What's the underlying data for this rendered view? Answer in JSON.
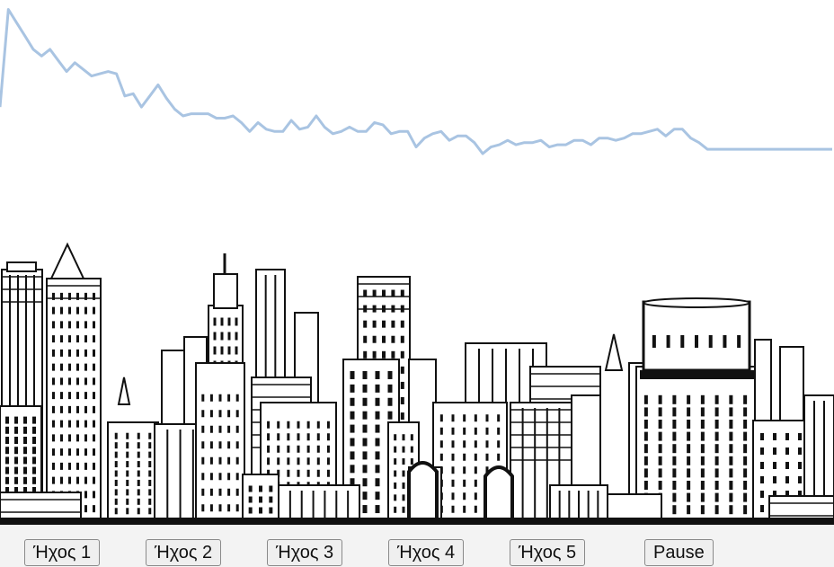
{
  "visualizer": {
    "line_color": "#a9c4e2",
    "levels": [
      0.55,
      0.99,
      0.93,
      0.87,
      0.81,
      0.78,
      0.81,
      0.76,
      0.71,
      0.75,
      0.72,
      0.69,
      0.7,
      0.71,
      0.7,
      0.6,
      0.61,
      0.55,
      0.6,
      0.65,
      0.59,
      0.54,
      0.51,
      0.52,
      0.52,
      0.52,
      0.5,
      0.5,
      0.51,
      0.48,
      0.44,
      0.48,
      0.45,
      0.44,
      0.44,
      0.49,
      0.45,
      0.46,
      0.51,
      0.46,
      0.43,
      0.44,
      0.46,
      0.44,
      0.44,
      0.48,
      0.47,
      0.43,
      0.44,
      0.44,
      0.37,
      0.41,
      0.43,
      0.44,
      0.4,
      0.42,
      0.42,
      0.39,
      0.34,
      0.37,
      0.38,
      0.4,
      0.38,
      0.39,
      0.39,
      0.4,
      0.37,
      0.38,
      0.38,
      0.4,
      0.4,
      0.38,
      0.41,
      0.41,
      0.4,
      0.41,
      0.43,
      0.43,
      0.44,
      0.45,
      0.42,
      0.45,
      0.45,
      0.41,
      0.39,
      0.36,
      0.36,
      0.36,
      0.36,
      0.36,
      0.36,
      0.36,
      0.36,
      0.36,
      0.36,
      0.36,
      0.36,
      0.36,
      0.36,
      0.36,
      0.36
    ]
  },
  "skyline": {
    "ink_color": "#111111",
    "paper_color": "#ffffff"
  },
  "controls": {
    "buttons": [
      {
        "label": "Ήχος 1"
      },
      {
        "label": "Ήχος 2"
      },
      {
        "label": "Ήχος 3"
      },
      {
        "label": "Ήχος 4"
      },
      {
        "label": "Ήχος 5"
      },
      {
        "label": "Pause"
      }
    ]
  }
}
